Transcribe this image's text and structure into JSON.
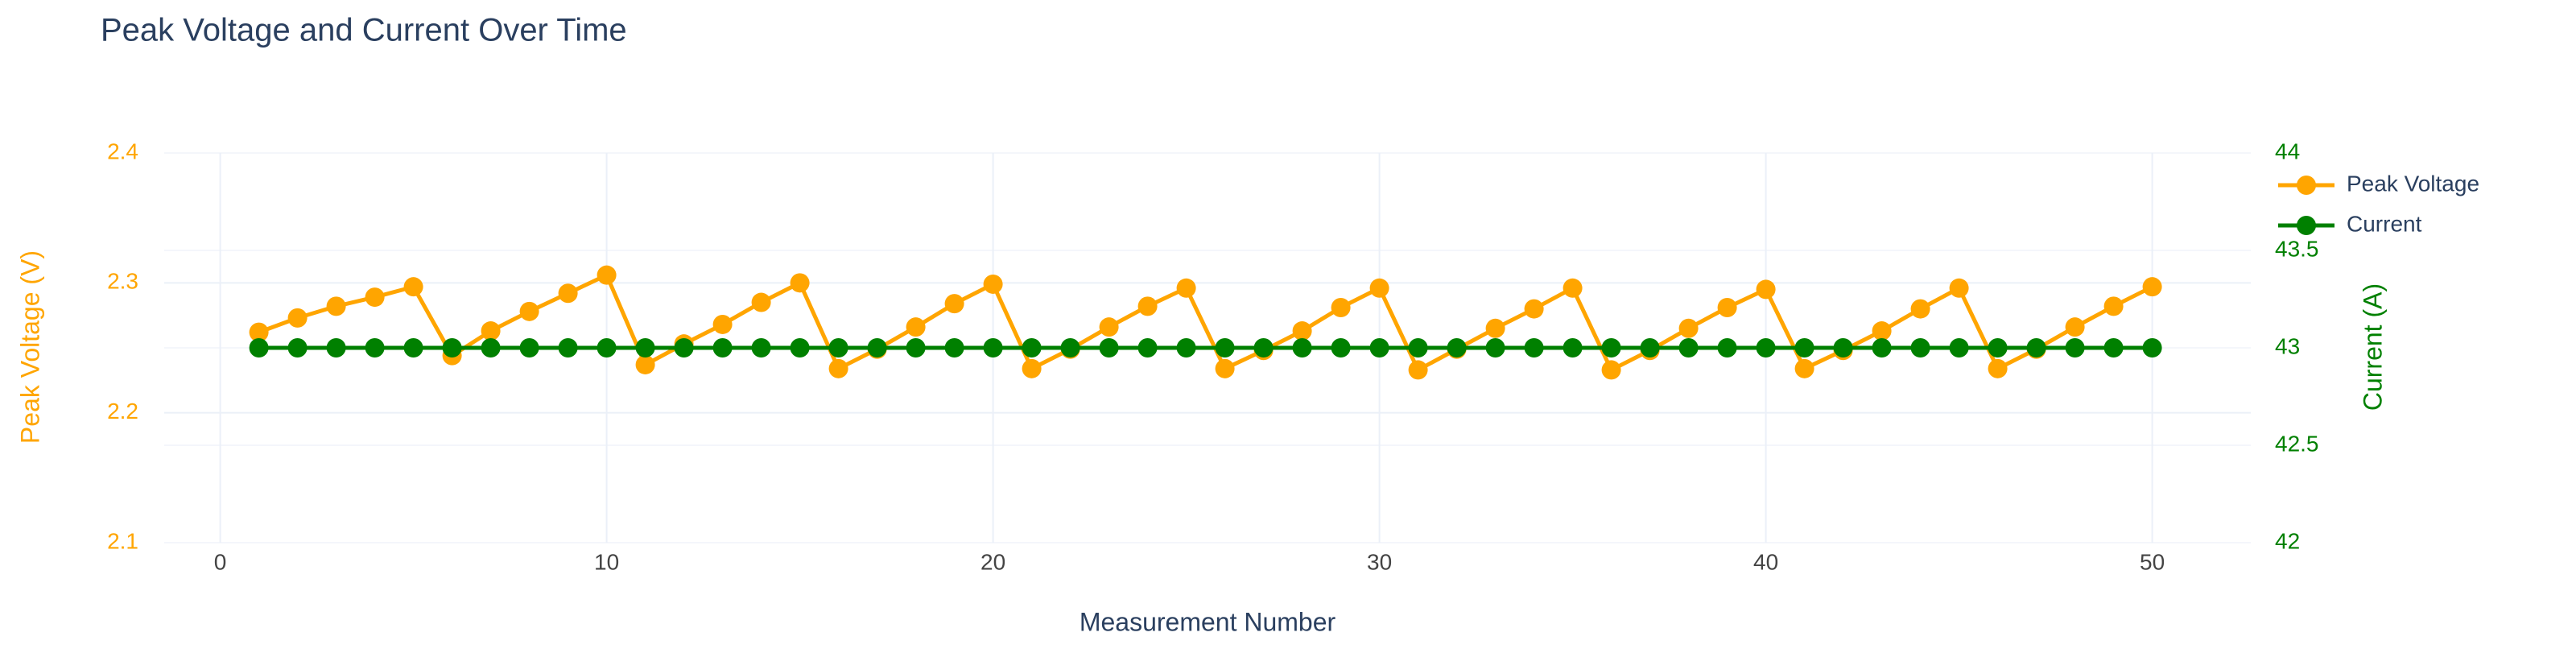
{
  "chart_data": {
    "type": "line",
    "title": "Peak Voltage and Current Over Time",
    "x_label": "Measurement Number",
    "y_label": "Peak Voltage (V)",
    "y2_label": "Current (A)",
    "x": [
      1,
      2,
      3,
      4,
      5,
      6,
      7,
      8,
      9,
      10,
      11,
      12,
      13,
      14,
      15,
      16,
      17,
      18,
      19,
      20,
      21,
      22,
      23,
      24,
      25,
      26,
      27,
      28,
      29,
      30,
      31,
      32,
      33,
      34,
      35,
      36,
      37,
      38,
      39,
      40,
      41,
      42,
      43,
      44,
      45,
      46,
      47,
      48,
      49,
      50
    ],
    "series": [
      {
        "name": "Peak Voltage",
        "color": "#FFA500",
        "axis": "y",
        "values": [
          2.262,
          2.273,
          2.282,
          2.289,
          2.297,
          2.244,
          2.263,
          2.278,
          2.292,
          2.306,
          2.237,
          2.253,
          2.268,
          2.285,
          2.3,
          2.234,
          2.249,
          2.266,
          2.284,
          2.299,
          2.234,
          2.249,
          2.266,
          2.282,
          2.296,
          2.234,
          2.248,
          2.263,
          2.281,
          2.296,
          2.233,
          2.249,
          2.265,
          2.28,
          2.296,
          2.233,
          2.248,
          2.265,
          2.281,
          2.295,
          2.234,
          2.248,
          2.263,
          2.28,
          2.296,
          2.234,
          2.249,
          2.266,
          2.282,
          2.297
        ]
      },
      {
        "name": "Current",
        "color": "#008000",
        "axis": "y2",
        "values": [
          43,
          43,
          43,
          43,
          43,
          43,
          43,
          43,
          43,
          43,
          43,
          43,
          43,
          43,
          43,
          43,
          43,
          43,
          43,
          43,
          43,
          43,
          43,
          43,
          43,
          43,
          43,
          43,
          43,
          43,
          43,
          43,
          43,
          43,
          43,
          43,
          43,
          43,
          43,
          43,
          43,
          43,
          43,
          43,
          43,
          43,
          43,
          43,
          43,
          43
        ]
      }
    ],
    "xlim": [
      -1.45,
      52.55
    ],
    "xticks": [
      0,
      10,
      20,
      30,
      40,
      50
    ],
    "ylim": [
      2.1,
      2.4
    ],
    "yticks": [
      2.1,
      2.2,
      2.3,
      2.4
    ],
    "y2lim": [
      42,
      44
    ],
    "y2ticks": [
      42,
      42.5,
      43,
      43.5,
      44
    ],
    "grid": true,
    "legend": "top-right"
  }
}
